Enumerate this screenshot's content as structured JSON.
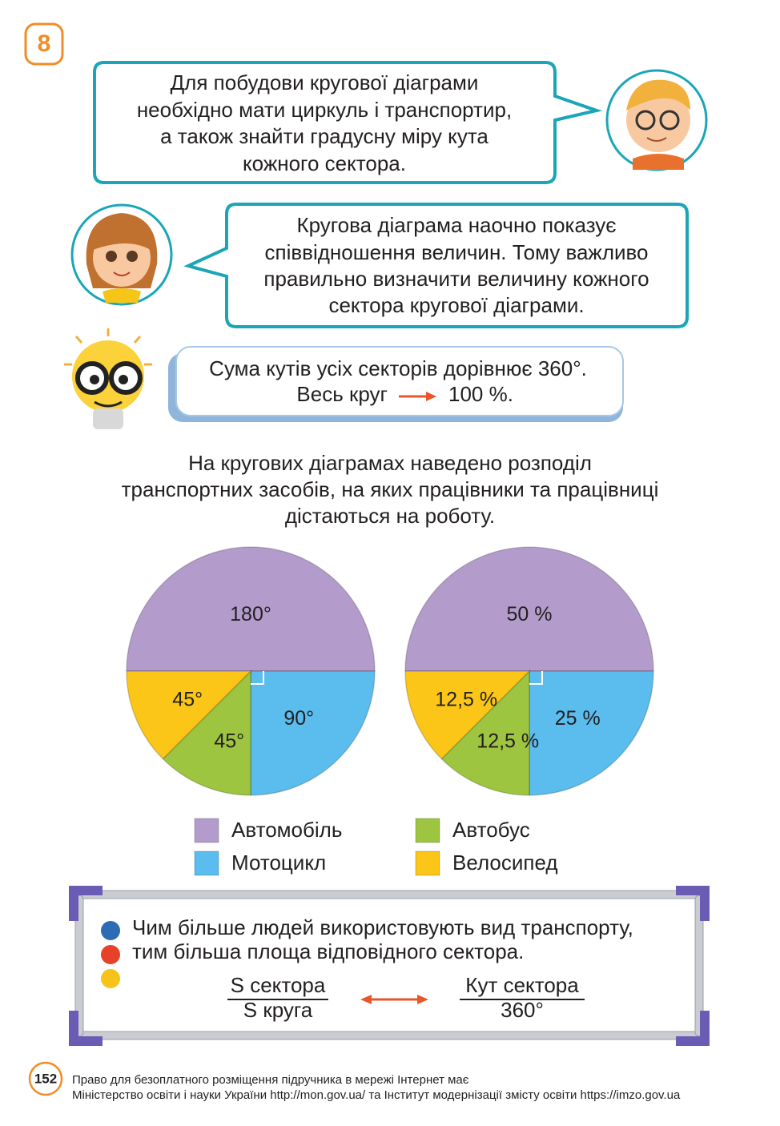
{
  "badge": "8",
  "bubbles": [
    {
      "lines": [
        "Для побудови кругової діаграми",
        "необхідно мати циркуль і транспортир,",
        "а також знайти градусну міру кута",
        "кожного сектора."
      ]
    },
    {
      "lines": [
        "Кругова діаграма наочно показує",
        "співвідношення величин. Тому важливо",
        "правильно визначити величину кожного",
        "сектора кругової діаграми."
      ]
    }
  ],
  "tip": {
    "line1": "Сума кутів усіх секторів дорівнює 360°.",
    "line2_left": "Весь круг",
    "line2_right": "100 %."
  },
  "intro": [
    "На кругових діаграмах наведено розподіл",
    "транспортних засобів, на яких працівники та працівниці",
    "дістаються на роботу."
  ],
  "chart_data": [
    {
      "type": "pie",
      "categories": [
        "Автомобіль",
        "Мотоцикл",
        "Автобус",
        "Велосипед"
      ],
      "colors": [
        "#b39ccb",
        "#5bbcee",
        "#9dc540",
        "#fbc617"
      ],
      "values": [
        180,
        90,
        45,
        45
      ],
      "value_labels": [
        "180°",
        "90°",
        "45°",
        "45°"
      ]
    },
    {
      "type": "pie",
      "colors": [
        "#b39ccb",
        "#5bbcee",
        "#9dc540",
        "#fbc617"
      ],
      "values": [
        50,
        25,
        12.5,
        12.5
      ],
      "value_labels": [
        "50 %",
        "25 %",
        "12,5 %",
        "12,5 %"
      ]
    }
  ],
  "note": {
    "lines": [
      "Чим більше людей використовують вид транспорту,",
      "тим більша площа відповідного сектора."
    ],
    "formula": {
      "left_num": "S сектора",
      "left_den": "S круга",
      "right_num": "Кут сектора",
      "right_den": "360°"
    }
  },
  "footer": {
    "page": "152",
    "lines": [
      "Право для безоплатного розміщення підручника в мережі Інтернет має",
      "Міністерство освіти і науки України http://mon.gov.ua/ та Інститут модернізації змісту освіти https://imzo.gov.ua"
    ]
  }
}
